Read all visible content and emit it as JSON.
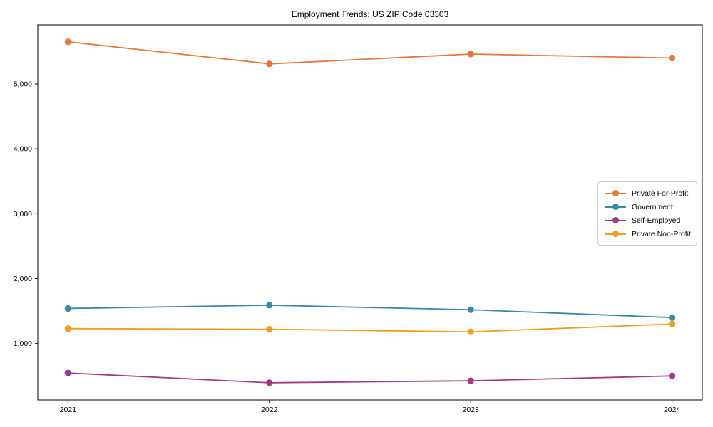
{
  "chart_data": {
    "type": "line",
    "title": "Employment Trends: US ZIP Code 03303",
    "xlabel": "",
    "ylabel": "",
    "x": [
      2021,
      2022,
      2023,
      2024
    ],
    "x_ticks": [
      "2021",
      "2022",
      "2023",
      "2024"
    ],
    "y_ticks": [
      1000,
      2000,
      3000,
      4000,
      5000
    ],
    "y_tick_labels": [
      "1,000",
      "2,000",
      "3,000",
      "4,000",
      "5,000"
    ],
    "xlim": [
      2020.85,
      2024.15
    ],
    "ylim": [
      130,
      5910
    ],
    "grid": false,
    "legend_position": "right-middle",
    "series": [
      {
        "name": "Private For-Profit",
        "color": "#E8763B",
        "values": [
          5650,
          5310,
          5460,
          5400
        ]
      },
      {
        "name": "Government",
        "color": "#3B87A6",
        "values": [
          1540,
          1590,
          1520,
          1400
        ]
      },
      {
        "name": "Self-Employed",
        "color": "#A23B87",
        "values": [
          545,
          395,
          425,
          500
        ]
      },
      {
        "name": "Private Non-Profit",
        "color": "#F09C20",
        "values": [
          1230,
          1220,
          1180,
          1300
        ]
      }
    ]
  }
}
